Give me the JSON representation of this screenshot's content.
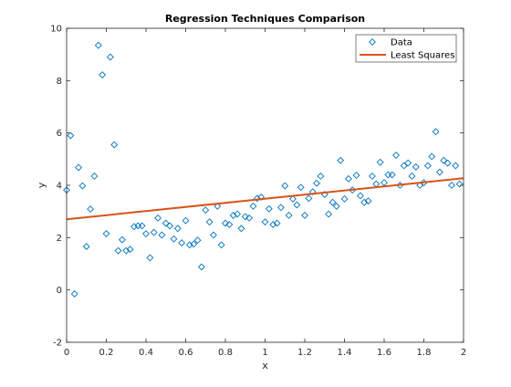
{
  "colors": {
    "data": "#0072BD",
    "line": "#D95319",
    "axis": "#262626",
    "background": "#ffffff"
  },
  "chart_data": {
    "type": "scatter",
    "title": "Regression Techniques Comparison",
    "xlabel": "x",
    "ylabel": "y",
    "xlim": [
      0,
      2
    ],
    "ylim": [
      -2,
      10
    ],
    "xticks": [
      0,
      0.2,
      0.4,
      0.6,
      0.8,
      1,
      1.2,
      1.4,
      1.6,
      1.8,
      2
    ],
    "xtick_labels": [
      "0",
      "0.2",
      "0.4",
      "0.6",
      "0.8",
      "1",
      "1.2",
      "1.4",
      "1.6",
      "1.8",
      "2"
    ],
    "yticks": [
      -2,
      0,
      2,
      4,
      6,
      8,
      10
    ],
    "ytick_labels": [
      "-2",
      "0",
      "2",
      "4",
      "6",
      "8",
      "10"
    ],
    "grid": false,
    "legend": {
      "position": "top-right",
      "entries": [
        "Data",
        "Least Squares"
      ]
    },
    "series": [
      {
        "name": "Data",
        "kind": "scatter",
        "marker": "diamond",
        "points": [
          [
            0.0,
            3.82
          ],
          [
            0.02,
            5.9
          ],
          [
            0.04,
            -0.15
          ],
          [
            0.06,
            4.68
          ],
          [
            0.08,
            3.98
          ],
          [
            0.1,
            1.66
          ],
          [
            0.12,
            3.09
          ],
          [
            0.14,
            4.35
          ],
          [
            0.16,
            9.35
          ],
          [
            0.18,
            8.22
          ],
          [
            0.2,
            2.15
          ],
          [
            0.22,
            8.9
          ],
          [
            0.24,
            5.55
          ],
          [
            0.26,
            1.5
          ],
          [
            0.28,
            1.92
          ],
          [
            0.3,
            1.5
          ],
          [
            0.32,
            1.55
          ],
          [
            0.34,
            2.42
          ],
          [
            0.36,
            2.45
          ],
          [
            0.38,
            2.45
          ],
          [
            0.4,
            2.15
          ],
          [
            0.42,
            1.23
          ],
          [
            0.44,
            2.2
          ],
          [
            0.46,
            2.75
          ],
          [
            0.48,
            2.1
          ],
          [
            0.5,
            2.55
          ],
          [
            0.52,
            2.45
          ],
          [
            0.54,
            1.95
          ],
          [
            0.56,
            2.35
          ],
          [
            0.58,
            1.8
          ],
          [
            0.6,
            2.65
          ],
          [
            0.62,
            1.72
          ],
          [
            0.64,
            1.75
          ],
          [
            0.66,
            1.9
          ],
          [
            0.68,
            0.88
          ],
          [
            0.7,
            3.05
          ],
          [
            0.72,
            2.6
          ],
          [
            0.74,
            2.1
          ],
          [
            0.76,
            3.2
          ],
          [
            0.78,
            1.72
          ],
          [
            0.8,
            2.55
          ],
          [
            0.82,
            2.5
          ],
          [
            0.84,
            2.85
          ],
          [
            0.86,
            2.9
          ],
          [
            0.88,
            2.35
          ],
          [
            0.9,
            2.8
          ],
          [
            0.92,
            2.75
          ],
          [
            0.94,
            3.2
          ],
          [
            0.96,
            3.5
          ],
          [
            0.98,
            3.55
          ],
          [
            1.0,
            2.6
          ],
          [
            1.02,
            3.1
          ],
          [
            1.04,
            2.5
          ],
          [
            1.06,
            2.55
          ],
          [
            1.08,
            3.15
          ],
          [
            1.1,
            3.98
          ],
          [
            1.12,
            2.85
          ],
          [
            1.14,
            3.48
          ],
          [
            1.16,
            3.25
          ],
          [
            1.18,
            3.92
          ],
          [
            1.2,
            2.85
          ],
          [
            1.22,
            3.5
          ],
          [
            1.24,
            3.75
          ],
          [
            1.26,
            4.08
          ],
          [
            1.28,
            4.35
          ],
          [
            1.3,
            3.65
          ],
          [
            1.32,
            2.9
          ],
          [
            1.34,
            3.35
          ],
          [
            1.36,
            3.2
          ],
          [
            1.38,
            4.95
          ],
          [
            1.4,
            3.48
          ],
          [
            1.42,
            4.25
          ],
          [
            1.44,
            3.82
          ],
          [
            1.46,
            4.38
          ],
          [
            1.48,
            3.6
          ],
          [
            1.5,
            3.35
          ],
          [
            1.52,
            3.4
          ],
          [
            1.54,
            4.35
          ],
          [
            1.56,
            4.05
          ],
          [
            1.58,
            4.88
          ],
          [
            1.6,
            4.1
          ],
          [
            1.62,
            4.4
          ],
          [
            1.64,
            4.4
          ],
          [
            1.66,
            5.15
          ],
          [
            1.68,
            4.0
          ],
          [
            1.7,
            4.75
          ],
          [
            1.72,
            4.85
          ],
          [
            1.74,
            4.35
          ],
          [
            1.76,
            4.7
          ],
          [
            1.78,
            4.0
          ],
          [
            1.8,
            4.1
          ],
          [
            1.82,
            4.75
          ],
          [
            1.84,
            5.1
          ],
          [
            1.86,
            6.05
          ],
          [
            1.88,
            4.5
          ],
          [
            1.9,
            4.95
          ],
          [
            1.92,
            4.85
          ],
          [
            1.94,
            4.0
          ],
          [
            1.96,
            4.75
          ],
          [
            1.98,
            4.05
          ]
        ]
      },
      {
        "name": "Least Squares",
        "kind": "line",
        "points": [
          [
            0,
            2.7
          ],
          [
            2,
            4.27
          ]
        ]
      }
    ]
  }
}
